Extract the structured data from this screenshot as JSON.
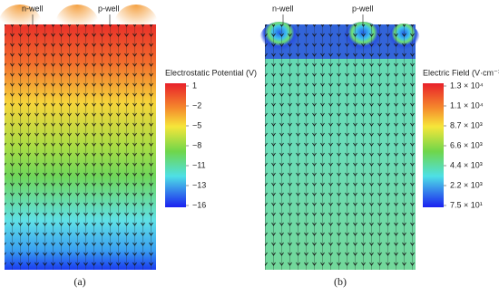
{
  "panels": [
    {
      "labels": [
        "n-well",
        "p-well"
      ],
      "colorbar": {
        "title": "Electrostatic Potential (V)",
        "ticks": [
          "1",
          "−2",
          "−5",
          "−8",
          "−11",
          "−13",
          "−16"
        ]
      },
      "caption": "(a)"
    },
    {
      "labels": [
        "n-well",
        "p-well"
      ],
      "colorbar": {
        "title": "Electric Field (V·cm⁻¹)",
        "ticks": [
          "1.3 × 10⁴",
          "1.1 × 10⁴",
          "8.7 × 10³",
          "6.6 × 10³",
          "4.4 × 10³",
          "2.2 × 10³",
          "7.5 × 10¹"
        ]
      },
      "caption": "(b)"
    }
  ]
}
